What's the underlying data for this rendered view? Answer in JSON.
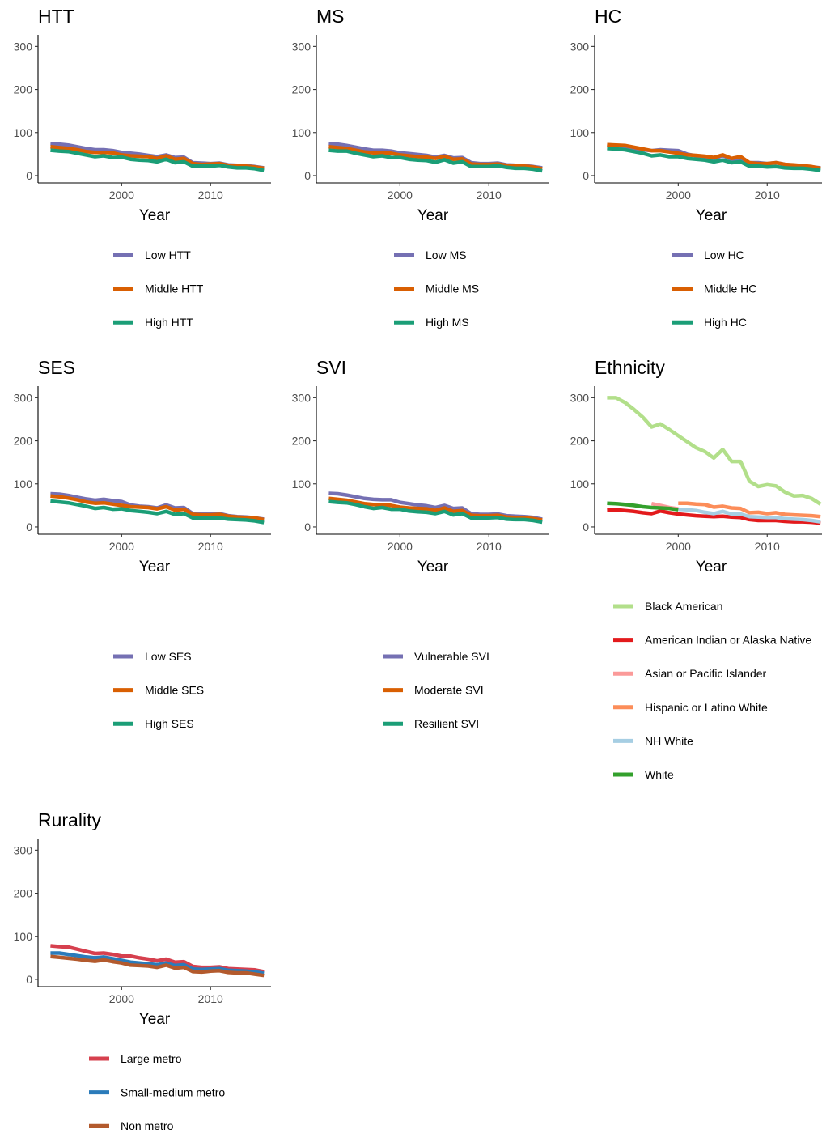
{
  "chart_data": [
    {
      "type": "line",
      "title": "HTT",
      "xlabel": "Year",
      "ylabel": "",
      "xlim": [
        1990.6,
        2016.8
      ],
      "ylim": [
        -17,
        327
      ],
      "xticks": [
        2000,
        2010
      ],
      "yticks": [
        0,
        100,
        200,
        300
      ],
      "grid": false,
      "legend": "below",
      "x": [
        1992,
        1993,
        1994,
        1995,
        1996,
        1997,
        1998,
        1999,
        2000,
        2001,
        2002,
        2003,
        2004,
        2005,
        2006,
        2007,
        2008,
        2009,
        2010,
        2011,
        2012,
        2013,
        2014,
        2015,
        2016
      ],
      "series": [
        {
          "name": "Low HTT",
          "color": "#7570b3",
          "values": [
            74,
            73,
            71,
            67,
            63,
            60,
            60,
            58,
            54,
            52,
            50,
            47,
            44,
            48,
            42,
            43,
            30,
            29,
            28,
            29,
            25,
            24,
            23,
            21,
            18
          ]
        },
        {
          "name": "Middle HTT",
          "color": "#d95f02",
          "values": [
            67,
            65,
            63,
            60,
            56,
            54,
            54,
            53,
            48,
            46,
            45,
            44,
            40,
            46,
            38,
            40,
            28,
            26,
            27,
            28,
            24,
            22,
            22,
            20,
            17
          ]
        },
        {
          "name": "High HTT",
          "color": "#1b9e77",
          "values": [
            59,
            57,
            56,
            52,
            48,
            44,
            46,
            42,
            43,
            38,
            36,
            35,
            32,
            38,
            30,
            32,
            22,
            22,
            22,
            24,
            20,
            18,
            18,
            16,
            12
          ]
        }
      ]
    },
    {
      "type": "line",
      "title": "MS",
      "xlabel": "Year",
      "ylabel": "",
      "xlim": [
        1990.6,
        2016.8
      ],
      "ylim": [
        -17,
        327
      ],
      "xticks": [
        2000,
        2010
      ],
      "yticks": [
        0,
        100,
        200,
        300
      ],
      "grid": false,
      "legend": "below",
      "x": [
        1992,
        1993,
        1994,
        1995,
        1996,
        1997,
        1998,
        1999,
        2000,
        2001,
        2002,
        2003,
        2004,
        2005,
        2006,
        2007,
        2008,
        2009,
        2010,
        2011,
        2012,
        2013,
        2014,
        2015,
        2016
      ],
      "series": [
        {
          "name": "Low MS",
          "color": "#7570b3",
          "values": [
            74,
            73,
            70,
            66,
            62,
            59,
            59,
            57,
            53,
            51,
            49,
            47,
            43,
            47,
            41,
            42,
            30,
            28,
            28,
            29,
            25,
            24,
            23,
            21,
            18
          ]
        },
        {
          "name": "Middle MS",
          "color": "#d95f02",
          "values": [
            67,
            65,
            63,
            59,
            55,
            53,
            53,
            52,
            48,
            46,
            44,
            43,
            40,
            45,
            38,
            39,
            27,
            26,
            26,
            27,
            24,
            22,
            22,
            20,
            16
          ]
        },
        {
          "name": "High MS",
          "color": "#1b9e77",
          "values": [
            59,
            57,
            57,
            52,
            48,
            44,
            46,
            42,
            42,
            38,
            36,
            35,
            31,
            37,
            29,
            32,
            21,
            21,
            21,
            23,
            19,
            17,
            17,
            15,
            11
          ]
        }
      ]
    },
    {
      "type": "line",
      "title": "HC",
      "xlabel": "Year",
      "ylabel": "",
      "xlim": [
        1990.6,
        2016.8
      ],
      "ylim": [
        -17,
        327
      ],
      "xticks": [
        2000,
        2010
      ],
      "yticks": [
        0,
        100,
        200,
        300
      ],
      "grid": false,
      "legend": "below",
      "x": [
        1992,
        1993,
        1994,
        1995,
        1996,
        1997,
        1998,
        1999,
        2000,
        2001,
        2002,
        2003,
        2004,
        2005,
        2006,
        2007,
        2008,
        2009,
        2010,
        2011,
        2012,
        2013,
        2014,
        2015,
        2016
      ],
      "series": [
        {
          "name": "Low HC",
          "color": "#7570b3",
          "values": [
            72,
            70,
            68,
            64,
            60,
            58,
            60,
            59,
            58,
            50,
            46,
            44,
            40,
            46,
            38,
            40,
            30,
            30,
            28,
            30,
            26,
            24,
            22,
            20,
            18
          ]
        },
        {
          "name": "Middle HC",
          "color": "#d95f02",
          "values": [
            72,
            71,
            70,
            66,
            62,
            58,
            58,
            55,
            52,
            48,
            47,
            45,
            42,
            48,
            40,
            44,
            30,
            28,
            28,
            30,
            26,
            25,
            23,
            21,
            17
          ]
        },
        {
          "name": "High HC",
          "color": "#1b9e77",
          "values": [
            63,
            62,
            60,
            56,
            52,
            46,
            48,
            44,
            44,
            40,
            38,
            36,
            32,
            36,
            30,
            32,
            22,
            22,
            20,
            21,
            18,
            17,
            17,
            15,
            12
          ]
        }
      ]
    },
    {
      "type": "line",
      "title": "SES",
      "xlabel": "Year",
      "ylabel": "",
      "xlim": [
        1990.6,
        2016.8
      ],
      "ylim": [
        -17,
        327
      ],
      "xticks": [
        2000,
        2010
      ],
      "yticks": [
        0,
        100,
        200,
        300
      ],
      "grid": false,
      "legend": "below",
      "x": [
        1992,
        1993,
        1994,
        1995,
        1996,
        1997,
        1998,
        1999,
        2000,
        2001,
        2002,
        2003,
        2004,
        2005,
        2006,
        2007,
        2008,
        2009,
        2010,
        2011,
        2012,
        2013,
        2014,
        2015,
        2016
      ],
      "series": [
        {
          "name": "Low SES",
          "color": "#7570b3",
          "values": [
            77,
            76,
            73,
            69,
            65,
            62,
            64,
            61,
            59,
            51,
            48,
            47,
            44,
            51,
            44,
            45,
            31,
            30,
            30,
            31,
            26,
            24,
            23,
            21,
            18
          ]
        },
        {
          "name": "Middle SES",
          "color": "#d95f02",
          "values": [
            72,
            70,
            67,
            63,
            58,
            55,
            56,
            53,
            50,
            47,
            46,
            45,
            42,
            47,
            39,
            41,
            29,
            28,
            28,
            29,
            25,
            23,
            22,
            21,
            17
          ]
        },
        {
          "name": "High SES",
          "color": "#1b9e77",
          "values": [
            60,
            58,
            56,
            52,
            48,
            43,
            45,
            41,
            42,
            38,
            36,
            34,
            31,
            36,
            29,
            31,
            21,
            21,
            20,
            21,
            18,
            17,
            16,
            14,
            10
          ]
        }
      ]
    },
    {
      "type": "line",
      "title": "SVI",
      "xlabel": "Year",
      "ylabel": "",
      "xlim": [
        1990.6,
        2016.8
      ],
      "ylim": [
        -17,
        327
      ],
      "xticks": [
        2000,
        2010
      ],
      "yticks": [
        0,
        100,
        200,
        300
      ],
      "grid": false,
      "legend": "below",
      "x": [
        1992,
        1993,
        1994,
        1995,
        1996,
        1997,
        1998,
        1999,
        2000,
        2001,
        2002,
        2003,
        2004,
        2005,
        2006,
        2007,
        2008,
        2009,
        2010,
        2011,
        2012,
        2013,
        2014,
        2015,
        2016
      ],
      "series": [
        {
          "name": "Vulnerable SVI",
          "color": "#7570b3",
          "values": [
            78,
            77,
            74,
            70,
            66,
            64,
            63,
            63,
            57,
            54,
            51,
            49,
            45,
            50,
            43,
            44,
            31,
            29,
            29,
            30,
            26,
            25,
            24,
            22,
            18
          ]
        },
        {
          "name": "Moderate SVI",
          "color": "#d95f02",
          "values": [
            66,
            64,
            62,
            58,
            54,
            52,
            52,
            50,
            46,
            44,
            43,
            42,
            38,
            44,
            36,
            38,
            27,
            26,
            26,
            27,
            23,
            22,
            21,
            19,
            16
          ]
        },
        {
          "name": "Resilient SVI",
          "color": "#1b9e77",
          "values": [
            59,
            57,
            56,
            52,
            47,
            43,
            45,
            41,
            41,
            37,
            35,
            34,
            31,
            36,
            28,
            31,
            21,
            21,
            21,
            22,
            18,
            17,
            17,
            15,
            11
          ]
        }
      ]
    },
    {
      "type": "line",
      "title": "Ethnicity",
      "xlabel": "Year",
      "ylabel": "",
      "xlim": [
        1990.6,
        2016.8
      ],
      "ylim": [
        -17,
        327
      ],
      "xticks": [
        2000,
        2010
      ],
      "yticks": [
        0,
        100,
        200,
        300
      ],
      "grid": false,
      "legend": "below",
      "series": [
        {
          "name": "Black American",
          "color": "#b2df8a",
          "x": [
            1992,
            1993,
            1994,
            1995,
            1996,
            1997,
            1998,
            1999,
            2000,
            2001,
            2002,
            2003,
            2004,
            2005,
            2006,
            2007,
            2008,
            2009,
            2010,
            2011,
            2012,
            2013,
            2014,
            2015,
            2016
          ],
          "values": [
            300,
            300,
            289,
            273,
            255,
            232,
            239,
            226,
            212,
            198,
            184,
            175,
            160,
            180,
            152,
            152,
            106,
            94,
            98,
            95,
            81,
            72,
            73,
            66,
            53
          ]
        },
        {
          "name": "American Indian or Alaska Native",
          "color": "#e31a1c",
          "x": [
            1992,
            1993,
            1994,
            1995,
            1996,
            1997,
            1998,
            1999,
            2000,
            2001,
            2002,
            2003,
            2004,
            2005,
            2006,
            2007,
            2008,
            2009,
            2010,
            2011,
            2012,
            2013,
            2014,
            2015,
            2016
          ],
          "values": [
            39,
            40,
            38,
            36,
            33,
            31,
            37,
            33,
            30,
            28,
            26,
            25,
            24,
            25,
            23,
            22,
            17,
            15,
            15,
            15,
            13,
            12,
            12,
            11,
            9
          ]
        },
        {
          "name": "Asian or Pacific Islander",
          "color": "#fb9a99",
          "x": [
            1997,
            1998,
            1999,
            2000
          ],
          "values": [
            54,
            50,
            45,
            42
          ]
        },
        {
          "name": "Hispanic or Latino White",
          "color": "#fc8d59",
          "x": [
            2000,
            2001,
            2002,
            2003,
            2004,
            2005,
            2006,
            2007,
            2008,
            2009,
            2010,
            2011,
            2012,
            2013,
            2014,
            2015,
            2016
          ],
          "values": [
            55,
            55,
            53,
            52,
            46,
            48,
            44,
            43,
            33,
            34,
            31,
            33,
            29,
            28,
            27,
            26,
            24
          ]
        },
        {
          "name": "NH White",
          "color": "#a6cee3",
          "x": [
            2000,
            2001,
            2002,
            2003,
            2004,
            2005,
            2006,
            2007,
            2008,
            2009,
            2010,
            2011,
            2012,
            2013,
            2014,
            2015,
            2016
          ],
          "values": [
            41,
            40,
            38,
            34,
            31,
            36,
            30,
            30,
            24,
            23,
            22,
            22,
            19,
            18,
            17,
            15,
            12
          ]
        },
        {
          "name": "White",
          "color": "#33a02c",
          "x": [
            1992,
            1993,
            1994,
            1995,
            1996,
            1997,
            1998,
            1999,
            2000
          ],
          "values": [
            55,
            54,
            52,
            50,
            47,
            45,
            44,
            43,
            40
          ]
        }
      ]
    },
    {
      "type": "line",
      "title": "Rurality",
      "xlabel": "Year",
      "ylabel": "",
      "xlim": [
        1990.6,
        2016.8
      ],
      "ylim": [
        -17,
        327
      ],
      "xticks": [
        2000,
        2010
      ],
      "yticks": [
        0,
        100,
        200,
        300
      ],
      "grid": false,
      "legend": "below",
      "x": [
        1992,
        1993,
        1994,
        1995,
        1996,
        1997,
        1998,
        1999,
        2000,
        2001,
        2002,
        2003,
        2004,
        2005,
        2006,
        2007,
        2008,
        2009,
        2010,
        2011,
        2012,
        2013,
        2014,
        2015,
        2016
      ],
      "series": [
        {
          "name": "Large metro",
          "color": "#d6404e",
          "values": [
            78,
            76,
            75,
            70,
            65,
            60,
            61,
            58,
            54,
            54,
            50,
            47,
            43,
            47,
            40,
            41,
            30,
            28,
            28,
            29,
            25,
            24,
            23,
            22,
            18
          ]
        },
        {
          "name": "Small-medium metro",
          "color": "#2b7bba",
          "values": [
            61,
            61,
            58,
            55,
            52,
            50,
            52,
            48,
            44,
            40,
            38,
            36,
            34,
            38,
            32,
            34,
            24,
            23,
            24,
            25,
            21,
            20,
            19,
            17,
            14
          ]
        },
        {
          "name": "Non metro",
          "color": "#b35a2d",
          "values": [
            53,
            51,
            49,
            47,
            44,
            42,
            45,
            41,
            38,
            33,
            32,
            31,
            28,
            33,
            26,
            28,
            18,
            17,
            19,
            20,
            16,
            15,
            15,
            12,
            9
          ]
        }
      ]
    }
  ]
}
